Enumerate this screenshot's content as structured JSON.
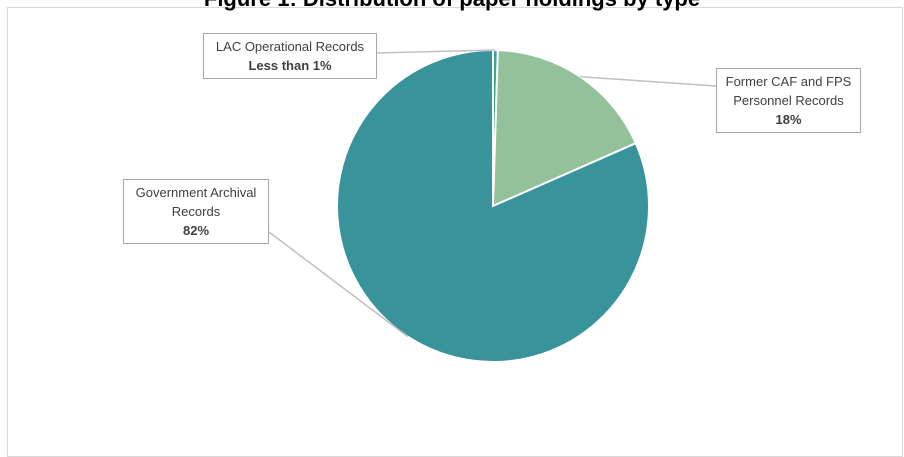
{
  "chart_data": {
    "type": "pie",
    "title": "Figure 1: Distribution of paper holdings by type",
    "slices": [
      {
        "name": "LAC Operational Records",
        "value": 0.5,
        "value_label": "Less than 1%",
        "color": "#3aa3a3"
      },
      {
        "name": "Former CAF and FPS Personnel Records",
        "value": 18,
        "value_label": "18%",
        "color": "#93c19a"
      },
      {
        "name": "Government Archival Records",
        "value": 82,
        "value_label": "82%",
        "color": "#38939b"
      }
    ],
    "legend": "none",
    "labels_with_leader_lines": true
  }
}
